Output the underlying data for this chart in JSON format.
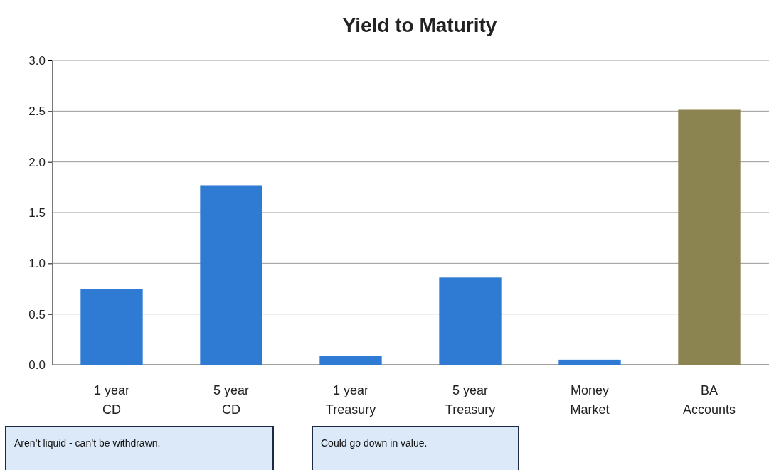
{
  "chart_data": {
    "type": "bar",
    "title": "Yield to Maturity",
    "categories": [
      "1 year\nCD",
      "5 year\nCD",
      "1 year\nTreasury",
      "5 year\nTreasury",
      "Money\nMarket",
      "BA\nAccounts"
    ],
    "values": [
      0.75,
      1.77,
      0.09,
      0.86,
      0.05,
      2.52
    ],
    "colors": [
      "#2f7bd3",
      "#2f7bd3",
      "#2f7bd3",
      "#2f7bd3",
      "#2f7bd3",
      "#8c8450"
    ],
    "ylim": [
      0,
      3
    ],
    "yticks": [
      {
        "value": 0,
        "label": "0.0"
      },
      {
        "value": 0.5,
        "label": "0.5"
      },
      {
        "value": 1,
        "label": "1.0"
      },
      {
        "value": 1.5,
        "label": "1.5"
      },
      {
        "value": 2,
        "label": "2.0"
      },
      {
        "value": 2.5,
        "label": "2.5"
      },
      {
        "value": 3,
        "label": "3.0"
      }
    ],
    "grid": "y",
    "annotations": [
      "Aren’t liquid - can’t be withdrawn.",
      "Could go down in value."
    ]
  }
}
